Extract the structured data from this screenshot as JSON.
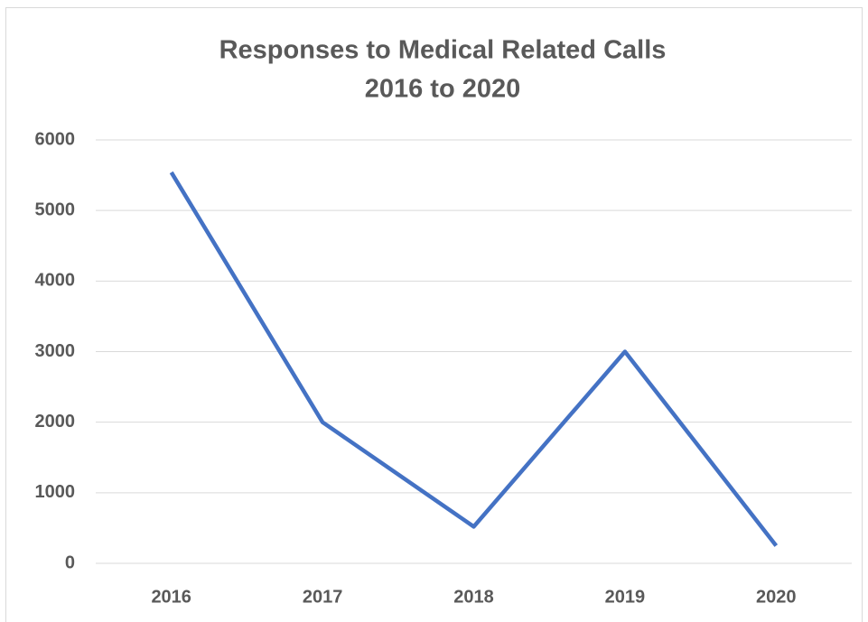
{
  "chart_data": {
    "type": "line",
    "title": [
      "Responses to Medical Related Calls",
      "2016 to 2020"
    ],
    "categories": [
      "2016",
      "2017",
      "2018",
      "2019",
      "2020"
    ],
    "series": [
      {
        "name": null,
        "color": "#4472c4",
        "values": [
          5540,
          2000,
          520,
          3000,
          250
        ]
      }
    ],
    "ylim": [
      0,
      6000
    ],
    "yticks": [
      0,
      1000,
      2000,
      3000,
      4000,
      5000,
      6000
    ],
    "grid": true
  }
}
